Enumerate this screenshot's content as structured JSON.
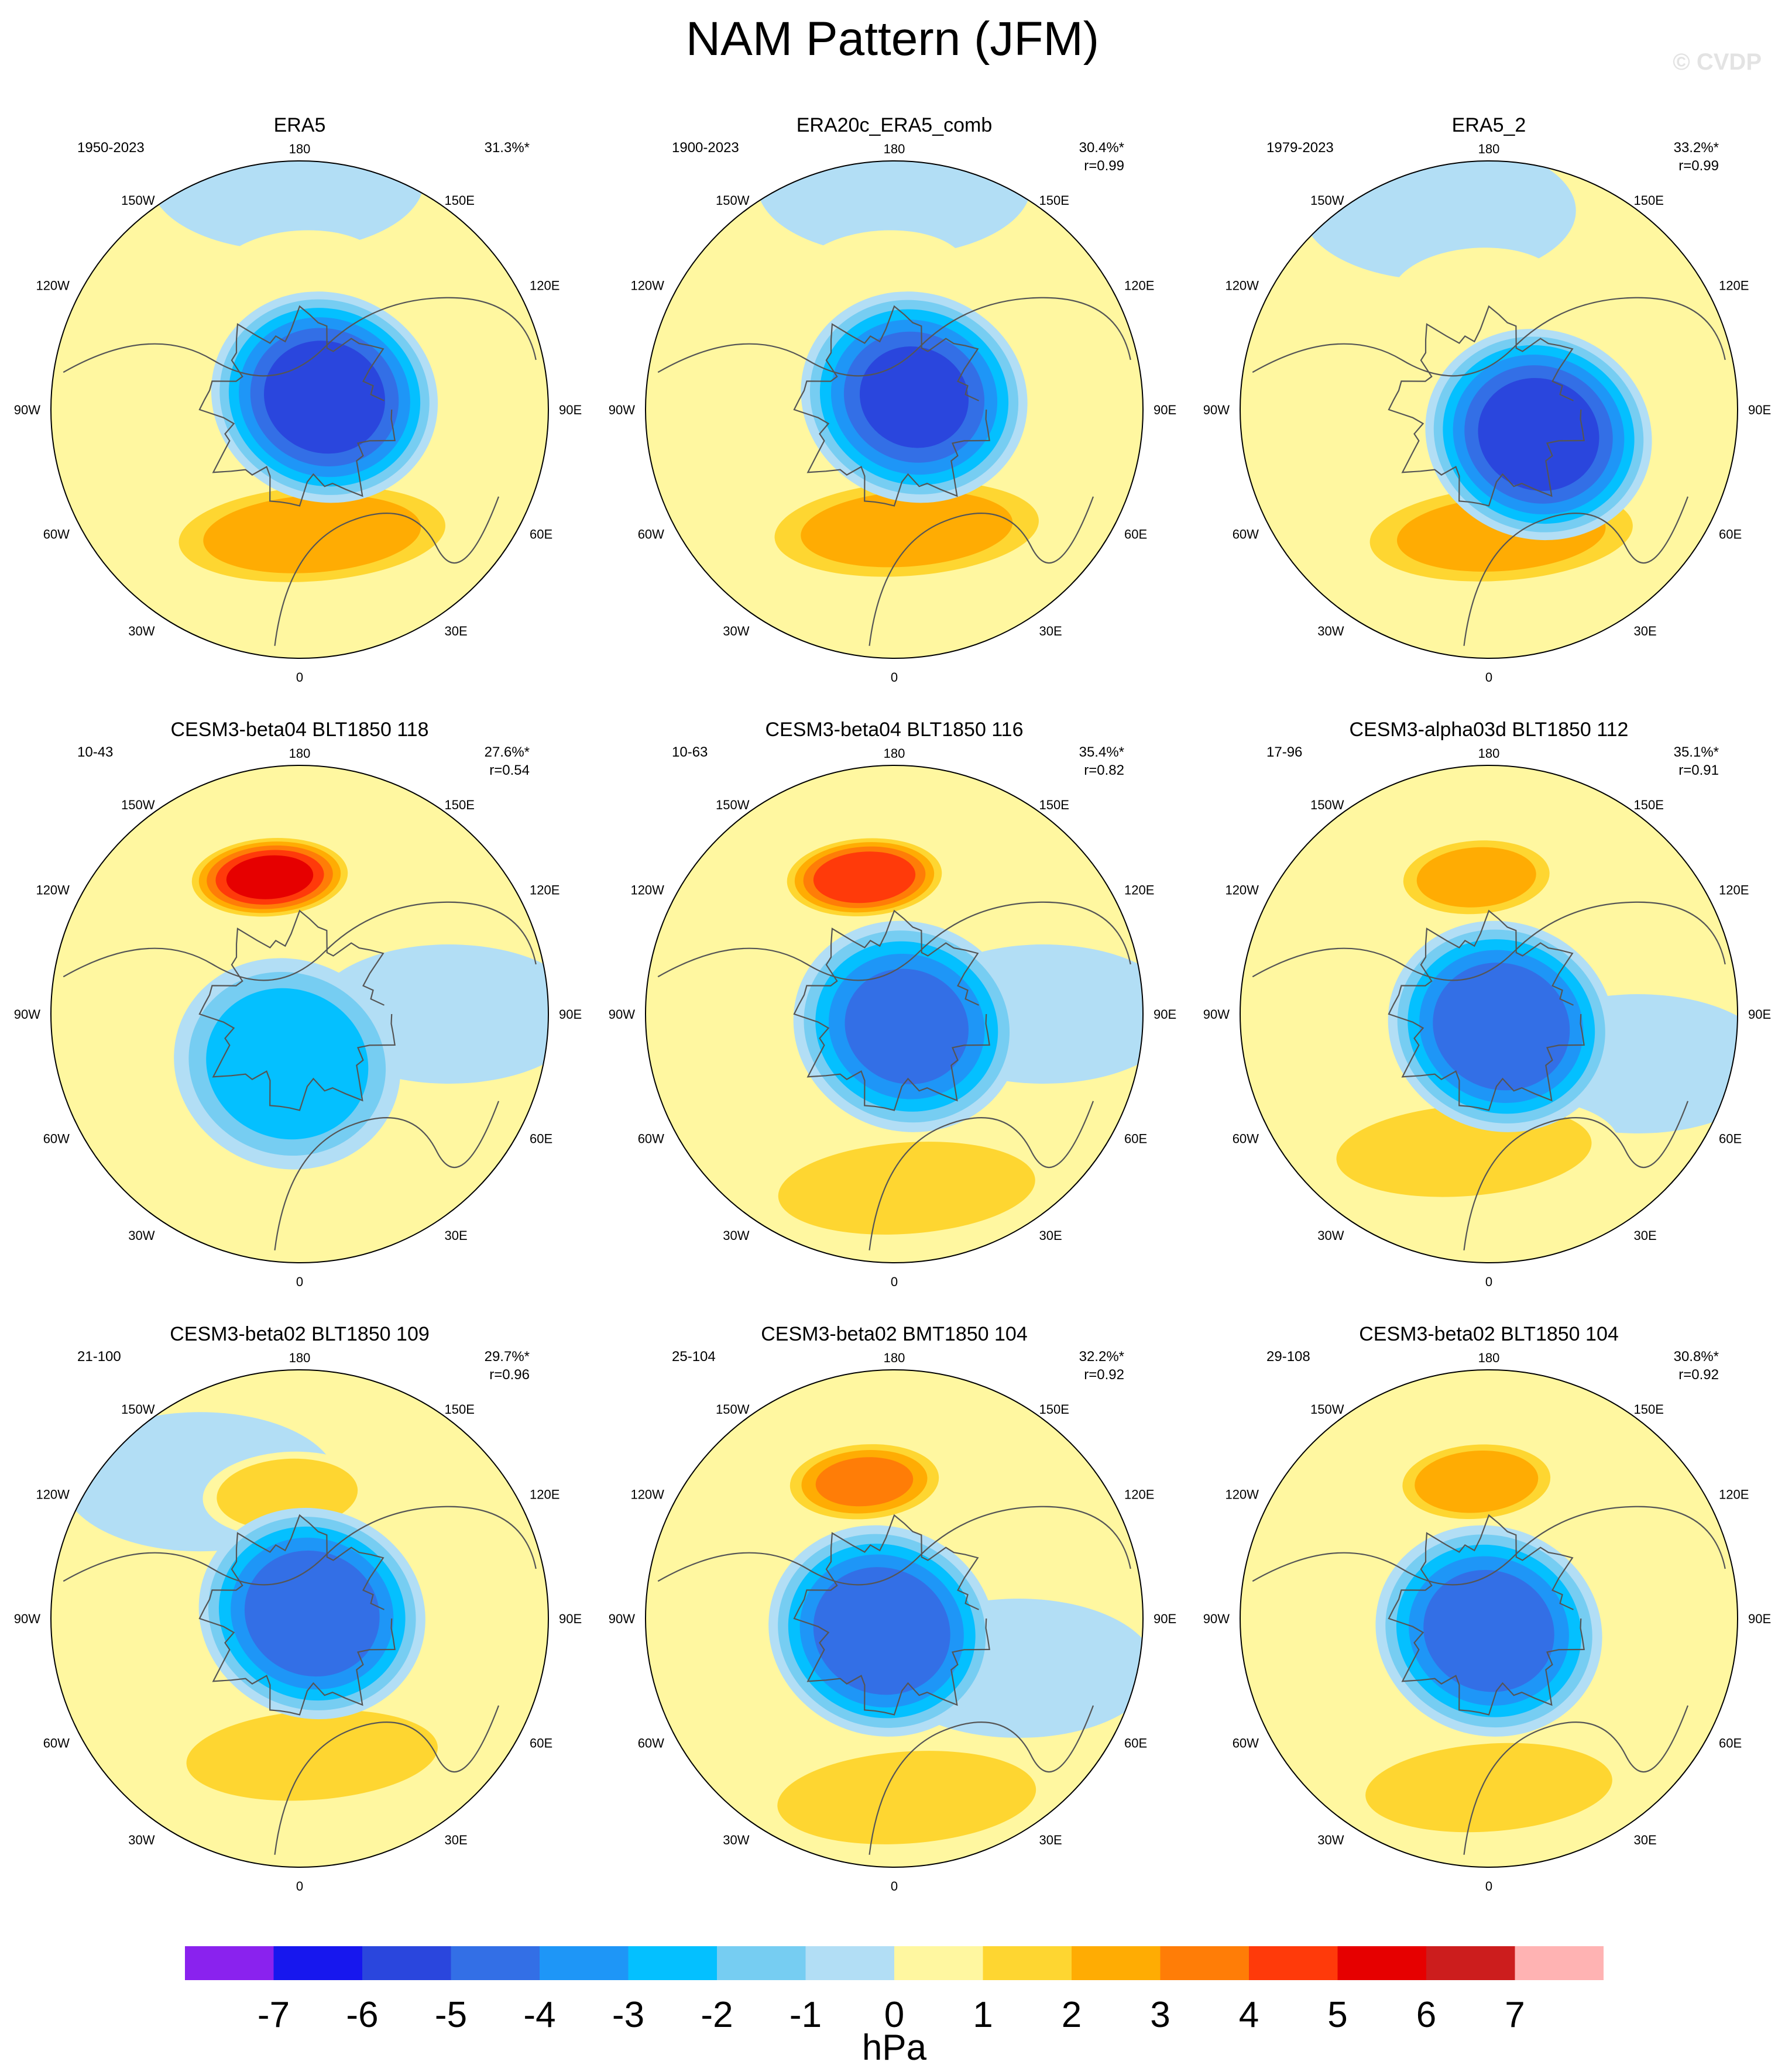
{
  "title": "NAM Pattern (JFM)",
  "watermark": "© CVDP",
  "panels": [
    {
      "name": "ERA5",
      "years": "1950-2023",
      "pct": "31.3%*",
      "r": "",
      "pattern": {
        "neg": [
          0.1,
          -0.05,
          -6.5
        ],
        "pos": [
          0.05,
          0.5,
          3.5
        ],
        "pac": [
          0.0,
          -0.55,
          1.5
        ],
        "pac_neg": [
          -0.05,
          -0.92,
          -1.2
        ]
      }
    },
    {
      "name": "ERA20c_ERA5_comb",
      "years": "1900-2023",
      "pct": "30.4%*",
      "r": "r=0.99",
      "pattern": {
        "neg": [
          0.08,
          -0.05,
          -6.0
        ],
        "pos": [
          0.05,
          0.48,
          3.3
        ],
        "pac": [
          -0.05,
          -0.55,
          1.6
        ],
        "pac_neg": [
          0.0,
          -0.9,
          -1.1
        ]
      }
    },
    {
      "name": "ERA5_2",
      "years": "1979-2023",
      "pct": "33.2%*",
      "r": "r=0.99",
      "pattern": {
        "neg": [
          0.2,
          0.1,
          -6.5
        ],
        "pos": [
          0.05,
          0.5,
          3.2
        ],
        "pac": [
          -0.05,
          -0.48,
          1.4
        ],
        "pac_neg": [
          -0.2,
          -0.8,
          -1.3
        ]
      }
    },
    {
      "name": "CESM3-beta04 BLT1850 118",
      "years": "10-43",
      "pct": "27.6%*",
      "r": "r=0.54",
      "pattern": {
        "neg": [
          -0.05,
          0.2,
          -3.6
        ],
        "pos": [
          -0.35,
          0.5,
          1.8
        ],
        "pac": [
          -0.12,
          -0.55,
          6.3
        ],
        "pac_neg": [
          0.6,
          0.0,
          -1.0
        ]
      }
    },
    {
      "name": "CESM3-beta04 BLT1850 116",
      "years": "10-63",
      "pct": "35.4%*",
      "r": "r=0.82",
      "pattern": {
        "neg": [
          0.05,
          0.05,
          -5.2
        ],
        "pos": [
          0.05,
          0.7,
          2.8
        ],
        "pac": [
          -0.12,
          -0.55,
          5.8
        ],
        "pac_neg": [
          0.6,
          0.0,
          -1.0
        ]
      }
    },
    {
      "name": "CESM3-alpha03d BLT1850 112",
      "years": "17-96",
      "pct": "35.1%*",
      "r": "r=0.91",
      "pattern": {
        "neg": [
          0.05,
          0.05,
          -5.8
        ],
        "pos": [
          -0.1,
          0.55,
          2.7
        ],
        "pac": [
          -0.05,
          -0.55,
          3.5
        ],
        "pac_neg": [
          0.6,
          0.2,
          -1.0
        ]
      }
    },
    {
      "name": "CESM3-beta02 BLT1850 109",
      "years": "21-100",
      "pct": "29.7%*",
      "r": "r=0.96",
      "pattern": {
        "neg": [
          0.05,
          -0.02,
          -5.7
        ],
        "pos": [
          0.05,
          0.55,
          2.5
        ],
        "pac": [
          -0.05,
          -0.5,
          2.8
        ],
        "pac_neg": [
          -0.4,
          -0.55,
          -1.1
        ]
      }
    },
    {
      "name": "CESM3-beta02 BMT1850 104",
      "years": "25-104",
      "pct": "32.2%*",
      "r": "r=0.92",
      "pattern": {
        "neg": [
          -0.05,
          0.05,
          -5.8
        ],
        "pos": [
          0.05,
          0.72,
          2.9
        ],
        "pac": [
          -0.12,
          -0.55,
          4.0
        ],
        "pac_neg": [
          0.5,
          0.2,
          -1.0
        ]
      }
    },
    {
      "name": "CESM3-beta02 BLT1850 104",
      "years": "29-108",
      "pct": "30.8%*",
      "r": "r=0.92",
      "pattern": {
        "neg": [
          0.0,
          0.05,
          -5.5
        ],
        "pos": [
          0.0,
          0.68,
          2.3
        ],
        "pac": [
          -0.05,
          -0.55,
          3.8
        ],
        "pac_neg": [
          0.5,
          0.2,
          -0.9
        ]
      }
    }
  ],
  "lon_labels": {
    "top": "180",
    "bottom": "0",
    "upper_left": "150W",
    "upper_right": "150E",
    "left_upper": "120W",
    "right_upper": "120E",
    "left_mid": "90W",
    "right_mid": "90E",
    "left_lower": "60W",
    "right_lower": "60E",
    "lower_left": "30W",
    "lower_right": "30E"
  },
  "colorbar": {
    "unit": "hPa",
    "levels": [
      "-7",
      "-6",
      "-5",
      "-4",
      "-3",
      "-2",
      "-1",
      "0",
      "1",
      "2",
      "3",
      "4",
      "5",
      "6",
      "7"
    ],
    "colors": [
      "#8a22ee",
      "#1717ee",
      "#2a46dd",
      "#336fe6",
      "#1e96f7",
      "#04c0ff",
      "#76cdf2",
      "#b2def5",
      "#fff7a0",
      "#fed631",
      "#ffac03",
      "#ff7d07",
      "#ff3a0a",
      "#e60000",
      "#cc1d1d",
      "#ffb3b3"
    ]
  }
}
